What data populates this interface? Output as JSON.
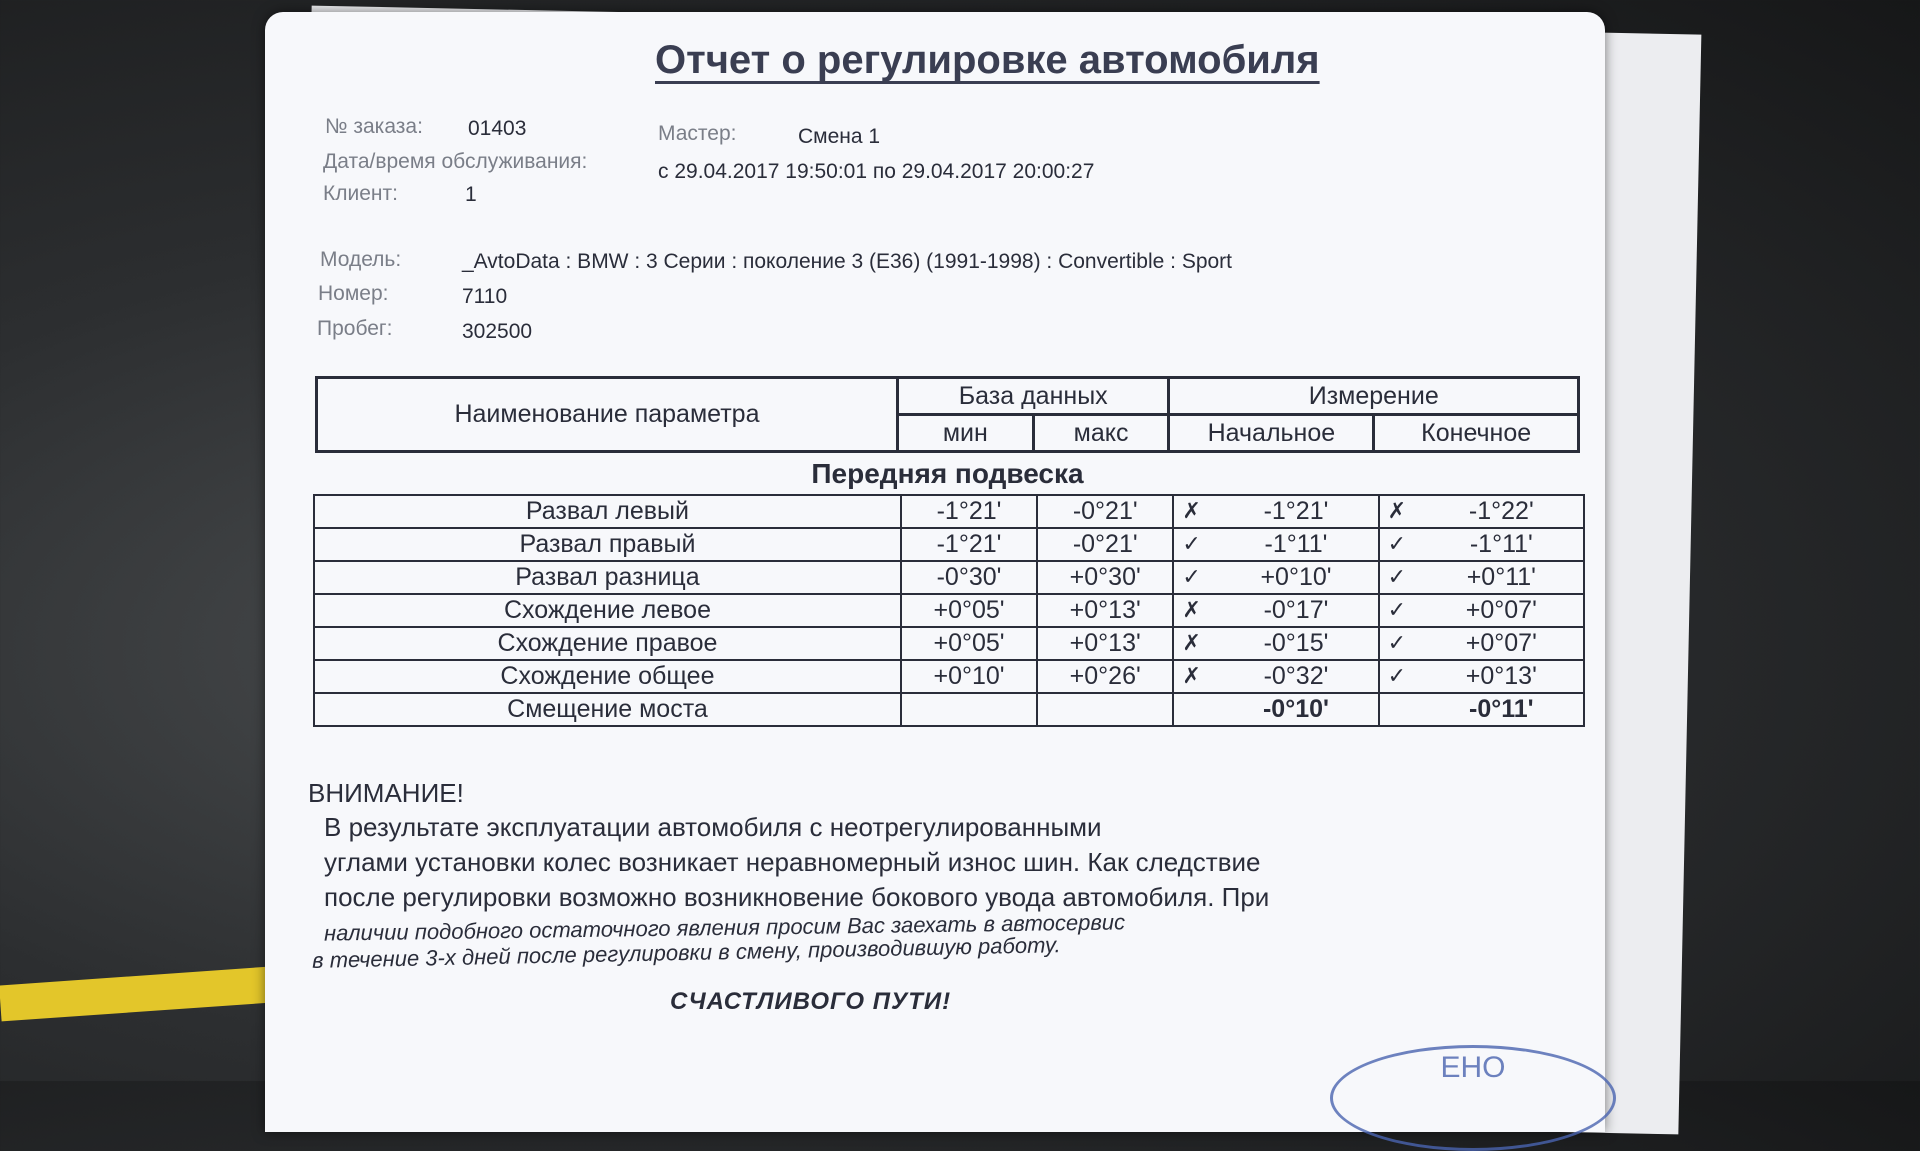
{
  "document": {
    "title": "Отчет о регулировке автомобиля",
    "order": {
      "label": "№ заказа:",
      "value": "01403"
    },
    "master": {
      "label": "Мастер:",
      "value": "Смена 1"
    },
    "datetime": {
      "label": "Дата/время обслуживания:",
      "value": "с 29.04.2017 19:50:01 по 29.04.2017 20:00:27"
    },
    "client": {
      "label": "Клиент:",
      "value": "1"
    },
    "model": {
      "label": "Модель:",
      "value": "_AvtoData : BMW : 3 Серии : поколение 3 (E36) (1991-1998) : Convertible : Sport"
    },
    "number": {
      "label": "Номер:",
      "value": "7110"
    },
    "mileage": {
      "label": "Пробег:",
      "value": "302500"
    }
  },
  "table": {
    "headers": {
      "param": "Наименование параметра",
      "database": "База данных",
      "measurement": "Измерение",
      "min": "мин",
      "max": "макс",
      "initial": "Начальное",
      "final": "Конечное"
    },
    "section": "Передняя подвеска",
    "rows": [
      {
        "name": "Развал левый",
        "min": "-1°21'",
        "max": "-0°21'",
        "initial_status": "fail",
        "initial": "-1°21'",
        "final_status": "fail",
        "final": "-1°22'"
      },
      {
        "name": "Развал правый",
        "min": "-1°21'",
        "max": "-0°21'",
        "initial_status": "ok",
        "initial": "-1°11'",
        "final_status": "ok",
        "final": "-1°11'"
      },
      {
        "name": "Развал разница",
        "min": "-0°30'",
        "max": "+0°30'",
        "initial_status": "ok",
        "initial": "+0°10'",
        "final_status": "ok",
        "final": "+0°11'"
      },
      {
        "name": "Схождение левое",
        "min": "+0°05'",
        "max": "+0°13'",
        "initial_status": "fail",
        "initial": "-0°17'",
        "final_status": "ok",
        "final": "+0°07'"
      },
      {
        "name": "Схождение правое",
        "min": "+0°05'",
        "max": "+0°13'",
        "initial_status": "fail",
        "initial": "-0°15'",
        "final_status": "ok",
        "final": "+0°07'"
      },
      {
        "name": "Схождение общее",
        "min": "+0°10'",
        "max": "+0°26'",
        "initial_status": "fail",
        "initial": "-0°32'",
        "final_status": "ok",
        "final": "+0°13'"
      },
      {
        "name": "Смещение моста",
        "min": "",
        "max": "",
        "initial_status": "",
        "initial": "-0°10'",
        "final_status": "",
        "final": "-0°11'"
      }
    ]
  },
  "warning": {
    "heading": "ВНИМАНИЕ!",
    "lines": [
      "В результате эксплуатации автомобиля с неотрегулированными",
      "углами установки колес возникает неравномерный износ шин. Как следствие",
      "после регулировки возможно возникновение бокового увода автомобиля. При",
      "наличии подобного остаточного явления просим Вас заехать в автосервис",
      "в течение 3-х дней после регулировки в смену, производившую работу."
    ],
    "closing": "СЧАСТЛИВОГО ПУТИ!"
  },
  "stamp": {
    "text": "ЕНО"
  },
  "icons": {
    "ok": "check-icon",
    "fail": "cross-icon"
  }
}
